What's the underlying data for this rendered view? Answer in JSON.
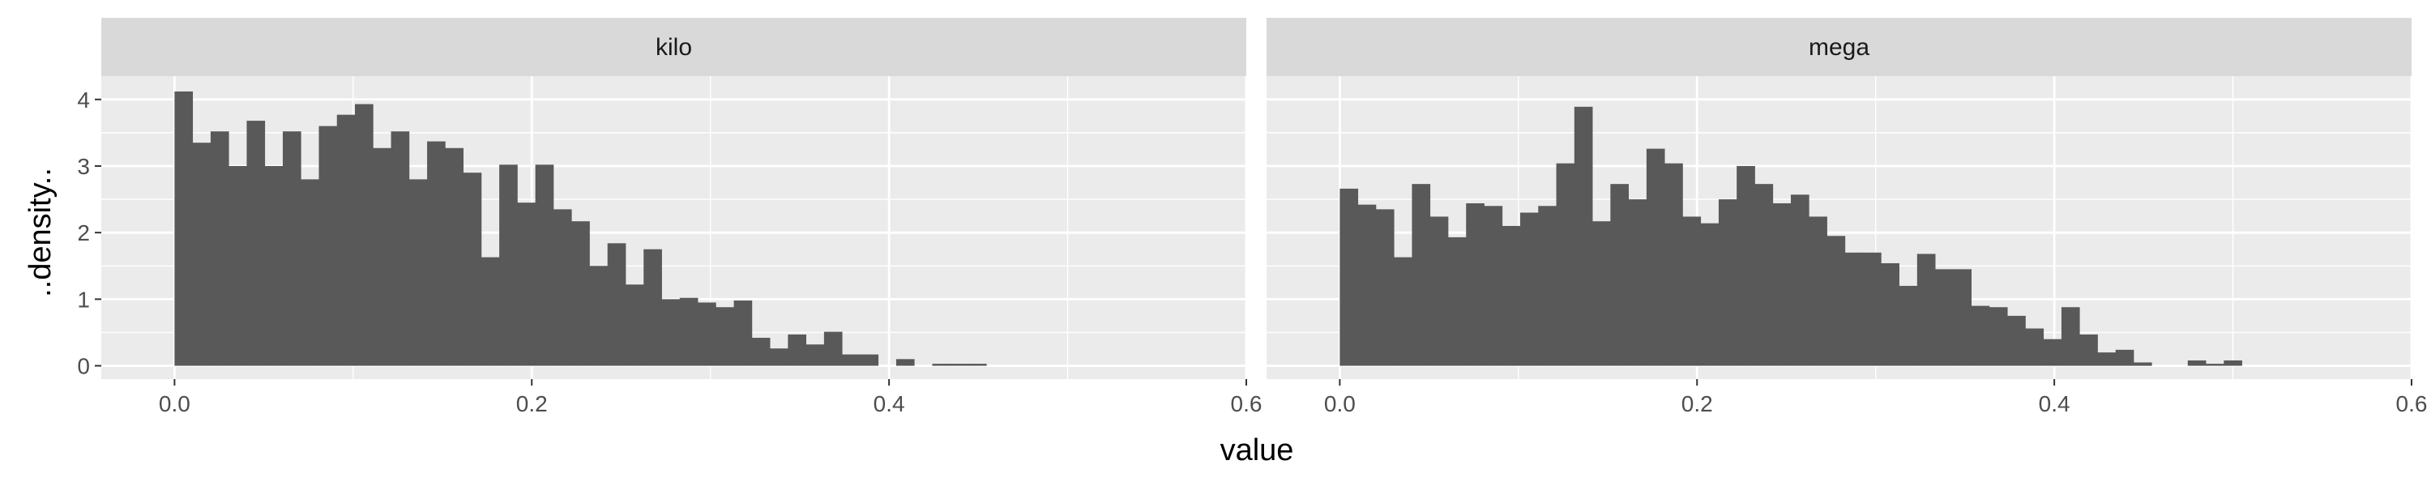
{
  "chart_data": {
    "type": "bar",
    "xlabel": "value",
    "ylabel": "..density..",
    "xlim": [
      -0.041,
      0.6
    ],
    "ylim": [
      -0.2,
      4.35
    ],
    "x_ticks": [
      0.0,
      0.2,
      0.4,
      0.6
    ],
    "x_tick_labels": [
      "0.0",
      "0.2",
      "0.4",
      "0.6"
    ],
    "y_ticks": [
      0,
      1,
      2,
      3,
      4
    ],
    "y_tick_labels": [
      "0",
      "1",
      "2",
      "3",
      "4"
    ],
    "bin_width": 0.0101,
    "bin_start": 0.0,
    "grid": true,
    "panel_background": "#ebebeb",
    "strip_background": "#d9d9d9",
    "bar_color": "#595959",
    "grid_color": "#ffffff",
    "panels": [
      {
        "label": "kilo",
        "values": [
          4.12,
          3.35,
          3.52,
          3.0,
          3.68,
          3.0,
          3.52,
          2.8,
          3.6,
          3.77,
          3.93,
          3.27,
          3.52,
          2.8,
          3.37,
          3.27,
          2.9,
          1.63,
          3.02,
          2.45,
          3.02,
          2.35,
          2.17,
          1.5,
          1.84,
          1.22,
          1.75,
          1.0,
          1.02,
          0.95,
          0.88,
          0.98,
          0.42,
          0.26,
          0.47,
          0.32,
          0.51,
          0.17,
          0.17,
          0.0,
          0.1,
          0.0,
          0.03,
          0.03,
          0.03,
          0.0,
          0.0,
          0.0,
          0.0,
          0.0,
          0.0,
          0.0,
          0.0,
          0.0,
          0.0,
          0.0
        ]
      },
      {
        "label": "mega",
        "values": [
          2.66,
          2.42,
          2.35,
          1.63,
          2.73,
          2.24,
          1.93,
          2.44,
          2.4,
          2.1,
          2.3,
          2.4,
          3.04,
          3.89,
          2.17,
          2.73,
          2.5,
          3.26,
          3.04,
          2.24,
          2.14,
          2.5,
          3.0,
          2.73,
          2.44,
          2.57,
          2.24,
          1.95,
          1.7,
          1.7,
          1.54,
          1.2,
          1.68,
          1.45,
          1.45,
          0.9,
          0.88,
          0.75,
          0.56,
          0.4,
          0.88,
          0.47,
          0.2,
          0.24,
          0.05,
          0.0,
          0.0,
          0.08,
          0.03,
          0.08,
          0.0,
          0.0,
          0.0,
          0.0,
          0.0,
          0.0
        ]
      }
    ]
  }
}
